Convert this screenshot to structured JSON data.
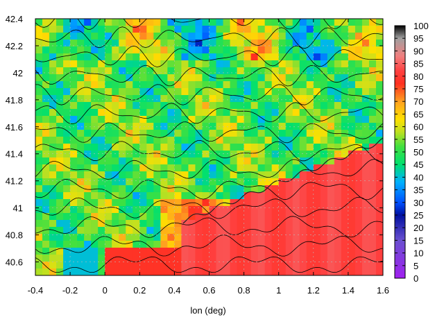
{
  "chart_data": {
    "type": "heatmap",
    "title": "",
    "xlabel": "lon (deg)",
    "ylabel": "",
    "xlim": [
      -0.4,
      1.6
    ],
    "ylim": [
      40.5,
      42.4
    ],
    "x_ticks": [
      "-0.4",
      "-0.2",
      "0",
      "0.2",
      "0.4",
      "0.6",
      "0.8",
      "1",
      "1.2",
      "1.4",
      "1.6"
    ],
    "y_ticks": [
      "42.4",
      "42.2",
      "42",
      "41.8",
      "41.6",
      "41.4",
      "41.2",
      "41",
      "40.8",
      "40.6"
    ],
    "colorbar": {
      "range": [
        0,
        100
      ],
      "ticks": [
        "100",
        "95",
        "90",
        "85",
        "80",
        "75",
        "70",
        "65",
        "60",
        "55",
        "50",
        "45",
        "40",
        "35",
        "30",
        "25",
        "20",
        "15",
        "10",
        "5",
        "0"
      ],
      "palette": [
        [
          0,
          "#a020f0"
        ],
        [
          15,
          "#6a50d0"
        ],
        [
          25,
          "#0010a0"
        ],
        [
          30,
          "#0050ff"
        ],
        [
          38,
          "#00b0ff"
        ],
        [
          45,
          "#00e070"
        ],
        [
          52,
          "#40e040"
        ],
        [
          58,
          "#c0e020"
        ],
        [
          63,
          "#ffe000"
        ],
        [
          70,
          "#ffa020"
        ],
        [
          77,
          "#ff3020"
        ],
        [
          82,
          "#ff4040"
        ],
        [
          88,
          "#f08080"
        ],
        [
          95,
          "#a0a0a0"
        ],
        [
          100,
          "#000000"
        ]
      ]
    },
    "grid": true,
    "contours": true
  }
}
